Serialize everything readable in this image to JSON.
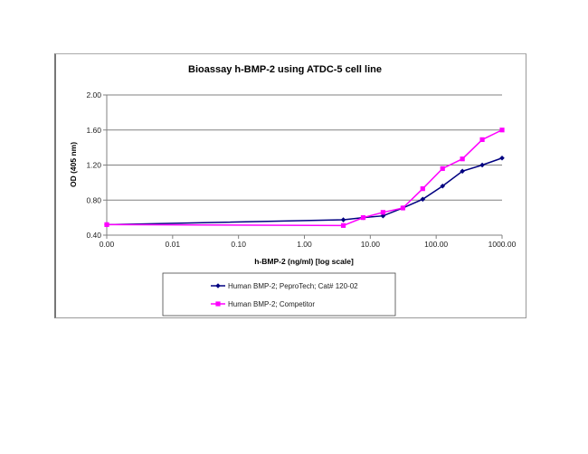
{
  "chart_data": {
    "type": "line",
    "title": "Bioassay h-BMP-2 using ATDC-5 cell line",
    "xlabel": "h-BMP-2 (ng/ml) [log scale]",
    "ylabel": "OD (405 nm)",
    "x_scale": "log",
    "x_tick_labels": [
      "0.00",
      "0.01",
      "0.10",
      "1.00",
      "10.00",
      "100.00",
      "1000.00"
    ],
    "y_tick_labels": [
      "0.40",
      "0.80",
      "1.20",
      "1.60",
      "2.00"
    ],
    "ylim": [
      0.4,
      2.0
    ],
    "xlim": [
      0.001,
      1000
    ],
    "grid": "horizontal",
    "legend_position": "bottom",
    "x": [
      0.001,
      3.9,
      7.8,
      15.6,
      31.25,
      62.5,
      125,
      250,
      500,
      1000
    ],
    "series": [
      {
        "name": "Human BMP-2; PeproTech; Cat# 120-02",
        "color": "#000080",
        "marker": "diamond",
        "values": [
          0.52,
          0.575,
          0.6,
          0.62,
          0.71,
          0.81,
          0.96,
          1.13,
          1.2,
          1.28
        ]
      },
      {
        "name": "Human BMP-2; Competitor",
        "color": "#ff00ff",
        "marker": "square",
        "values": [
          0.52,
          0.51,
          0.6,
          0.66,
          0.71,
          0.93,
          1.16,
          1.27,
          1.49,
          1.6
        ]
      }
    ]
  }
}
